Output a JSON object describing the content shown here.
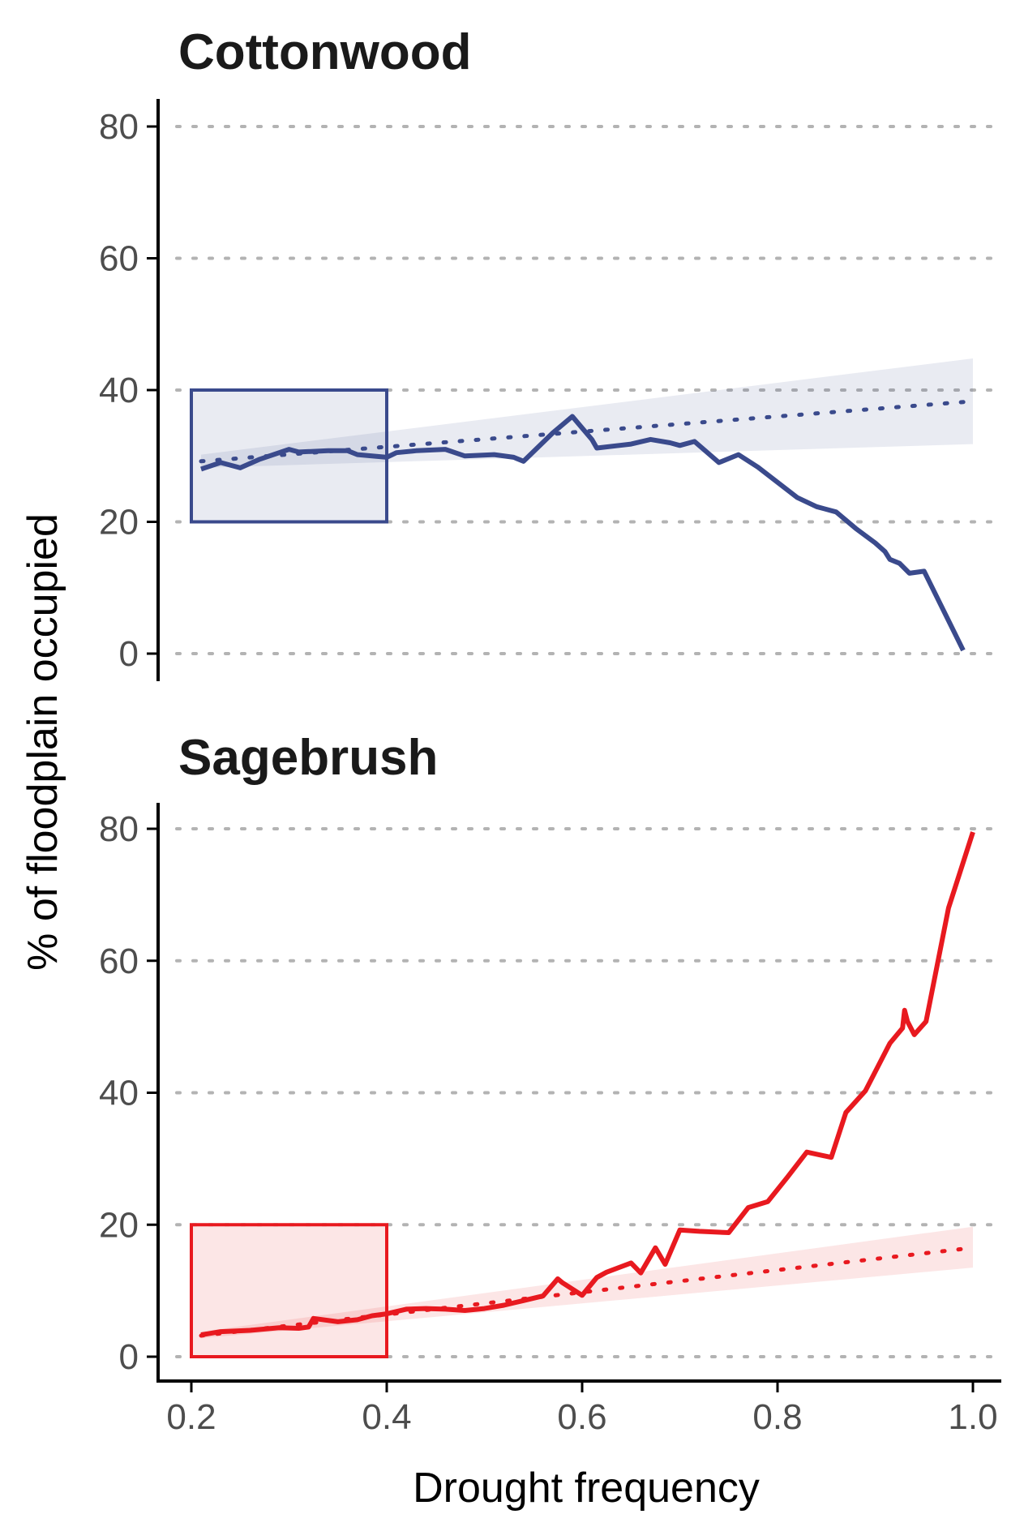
{
  "chart_data": [
    {
      "type": "line",
      "title": "Cottonwood",
      "xlabel": "Drought frequency",
      "ylabel": "% of floodplain occupied",
      "xlim": [
        0.2,
        1.0
      ],
      "ylim": [
        0,
        80
      ],
      "x_ticks": [
        "0.2",
        "0.4",
        "0.6",
        "0.8",
        "1.0"
      ],
      "y_ticks": [
        "0",
        "20",
        "40",
        "60",
        "80"
      ],
      "grid": "horizontal dotted",
      "color": "#3a4a8c",
      "series": [
        {
          "style": "solid",
          "points": [
            [
              0.21,
              28.0
            ],
            [
              0.23,
              29.0
            ],
            [
              0.25,
              28.2
            ],
            [
              0.27,
              29.5
            ],
            [
              0.3,
              31.0
            ],
            [
              0.31,
              30.6
            ],
            [
              0.34,
              30.8
            ],
            [
              0.36,
              30.8
            ],
            [
              0.37,
              30.2
            ],
            [
              0.4,
              29.8
            ],
            [
              0.41,
              30.5
            ],
            [
              0.43,
              30.8
            ],
            [
              0.46,
              31.0
            ],
            [
              0.48,
              30.0
            ],
            [
              0.51,
              30.2
            ],
            [
              0.53,
              29.8
            ],
            [
              0.54,
              29.2
            ],
            [
              0.57,
              33.5
            ],
            [
              0.59,
              36.0
            ],
            [
              0.61,
              32.5
            ],
            [
              0.615,
              31.2
            ],
            [
              0.65,
              31.8
            ],
            [
              0.67,
              32.5
            ],
            [
              0.69,
              32.0
            ],
            [
              0.7,
              31.6
            ],
            [
              0.715,
              32.2
            ],
            [
              0.74,
              29.0
            ],
            [
              0.76,
              30.2
            ],
            [
              0.78,
              28.3
            ],
            [
              0.8,
              26.0
            ],
            [
              0.82,
              23.7
            ],
            [
              0.84,
              22.3
            ],
            [
              0.86,
              21.5
            ],
            [
              0.88,
              19.0
            ],
            [
              0.9,
              16.8
            ],
            [
              0.91,
              15.5
            ],
            [
              0.915,
              14.3
            ],
            [
              0.925,
              13.7
            ],
            [
              0.935,
              12.2
            ],
            [
              0.95,
              12.5
            ],
            [
              0.99,
              0.5
            ]
          ]
        },
        {
          "style": "dotted",
          "points": [
            [
              0.21,
              29.2
            ],
            [
              1.0,
              38.3
            ]
          ]
        }
      ],
      "ribbon": {
        "x": [
          0.21,
          1.0
        ],
        "lower": [
          28.2,
          31.8
        ],
        "upper": [
          30.2,
          44.8
        ]
      },
      "rect": {
        "x": [
          0.2,
          0.4
        ],
        "y": [
          20,
          40
        ]
      }
    },
    {
      "type": "line",
      "title": "Sagebrush",
      "xlabel": "Drought frequency",
      "ylabel": "% of floodplain occupied",
      "xlim": [
        0.2,
        1.0
      ],
      "ylim": [
        0,
        80
      ],
      "x_ticks": [
        "0.2",
        "0.4",
        "0.6",
        "0.8",
        "1.0"
      ],
      "y_ticks": [
        "0",
        "20",
        "40",
        "60",
        "80"
      ],
      "grid": "horizontal dotted",
      "color": "#e8191f",
      "series": [
        {
          "style": "solid",
          "points": [
            [
              0.21,
              3.3
            ],
            [
              0.23,
              3.8
            ],
            [
              0.26,
              4.0
            ],
            [
              0.29,
              4.4
            ],
            [
              0.31,
              4.3
            ],
            [
              0.32,
              4.5
            ],
            [
              0.325,
              5.8
            ],
            [
              0.35,
              5.3
            ],
            [
              0.37,
              5.6
            ],
            [
              0.385,
              6.2
            ],
            [
              0.4,
              6.5
            ],
            [
              0.42,
              7.2
            ],
            [
              0.44,
              7.3
            ],
            [
              0.46,
              7.2
            ],
            [
              0.48,
              7.0
            ],
            [
              0.5,
              7.3
            ],
            [
              0.52,
              7.8
            ],
            [
              0.54,
              8.5
            ],
            [
              0.56,
              9.2
            ],
            [
              0.575,
              11.8
            ],
            [
              0.58,
              11.2
            ],
            [
              0.6,
              9.3
            ],
            [
              0.615,
              12.0
            ],
            [
              0.625,
              12.8
            ],
            [
              0.65,
              14.2
            ],
            [
              0.66,
              12.7
            ],
            [
              0.675,
              16.5
            ],
            [
              0.685,
              14.0
            ],
            [
              0.7,
              19.2
            ],
            [
              0.72,
              19.0
            ],
            [
              0.75,
              18.8
            ],
            [
              0.77,
              22.6
            ],
            [
              0.79,
              23.5
            ],
            [
              0.81,
              27.2
            ],
            [
              0.83,
              31.0
            ],
            [
              0.855,
              30.2
            ],
            [
              0.87,
              37.0
            ],
            [
              0.89,
              40.3
            ],
            [
              0.915,
              47.5
            ],
            [
              0.928,
              49.8
            ],
            [
              0.93,
              52.5
            ],
            [
              0.933,
              50.8
            ],
            [
              0.94,
              48.8
            ],
            [
              0.952,
              50.8
            ],
            [
              0.975,
              68.0
            ],
            [
              1.0,
              79.5
            ]
          ]
        },
        {
          "style": "dotted",
          "points": [
            [
              0.21,
              3.2
            ],
            [
              1.0,
              16.5
            ]
          ]
        }
      ],
      "ribbon": {
        "x": [
          0.21,
          1.0
        ],
        "lower": [
          2.8,
          13.5
        ],
        "upper": [
          3.8,
          19.7
        ]
      },
      "rect": {
        "x": [
          0.2,
          0.4
        ],
        "y": [
          0,
          20
        ]
      }
    }
  ]
}
